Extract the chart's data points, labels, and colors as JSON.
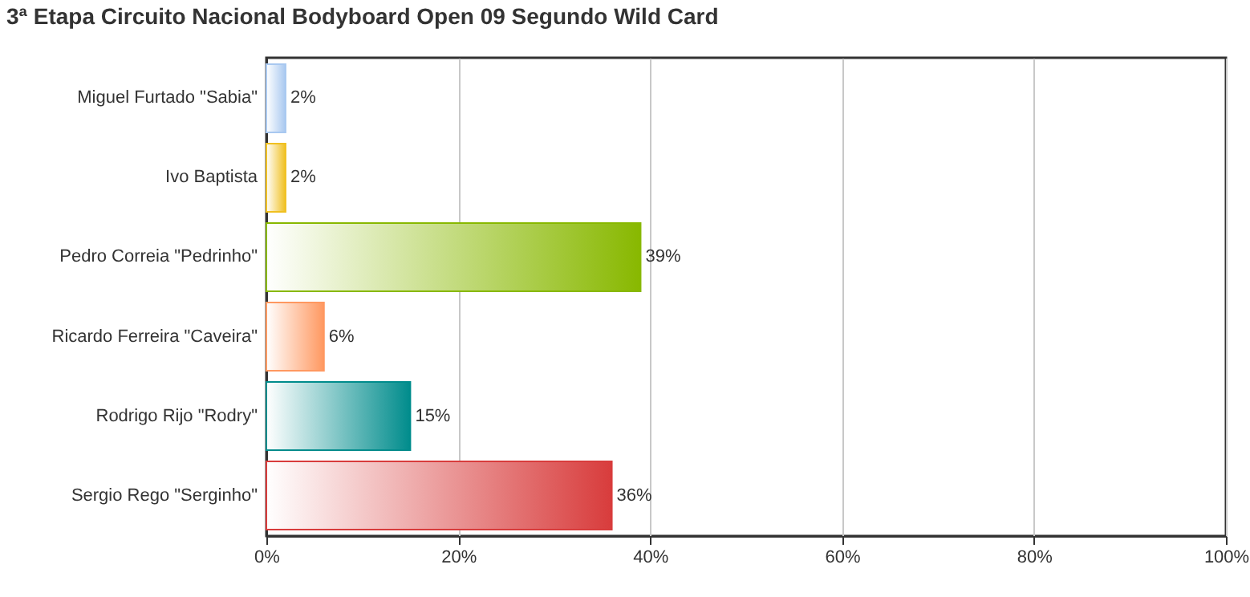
{
  "chart_data": {
    "type": "bar",
    "orientation": "horizontal",
    "title": "3ª Etapa Circuito Nacional Bodyboard Open 09 Segundo Wild Card",
    "categories": [
      "Miguel Furtado \"Sabia\"",
      "Ivo Baptista",
      "Pedro Correia \"Pedrinho\"",
      "Ricardo Ferreira \"Caveira\"",
      "Rodrigo Rijo \"Rodry\"",
      "Sergio Rego \"Serginho\""
    ],
    "values": [
      2,
      2,
      39,
      6,
      15,
      36
    ],
    "colors": [
      "#a8c8f0",
      "#f0c020",
      "#88b800",
      "#ff9860",
      "#008c8c",
      "#d83c3c"
    ],
    "value_labels": [
      "2%",
      "2%",
      "39%",
      "6%",
      "15%",
      "36%"
    ],
    "xlim": [
      0,
      100
    ],
    "xticks": [
      {
        "value": 0,
        "label": "0%"
      },
      {
        "value": 20,
        "label": "20%"
      },
      {
        "value": 40,
        "label": "40%"
      },
      {
        "value": 60,
        "label": "60%"
      },
      {
        "value": 80,
        "label": "80%"
      },
      {
        "value": 100,
        "label": "100%"
      }
    ],
    "grid": "x"
  }
}
